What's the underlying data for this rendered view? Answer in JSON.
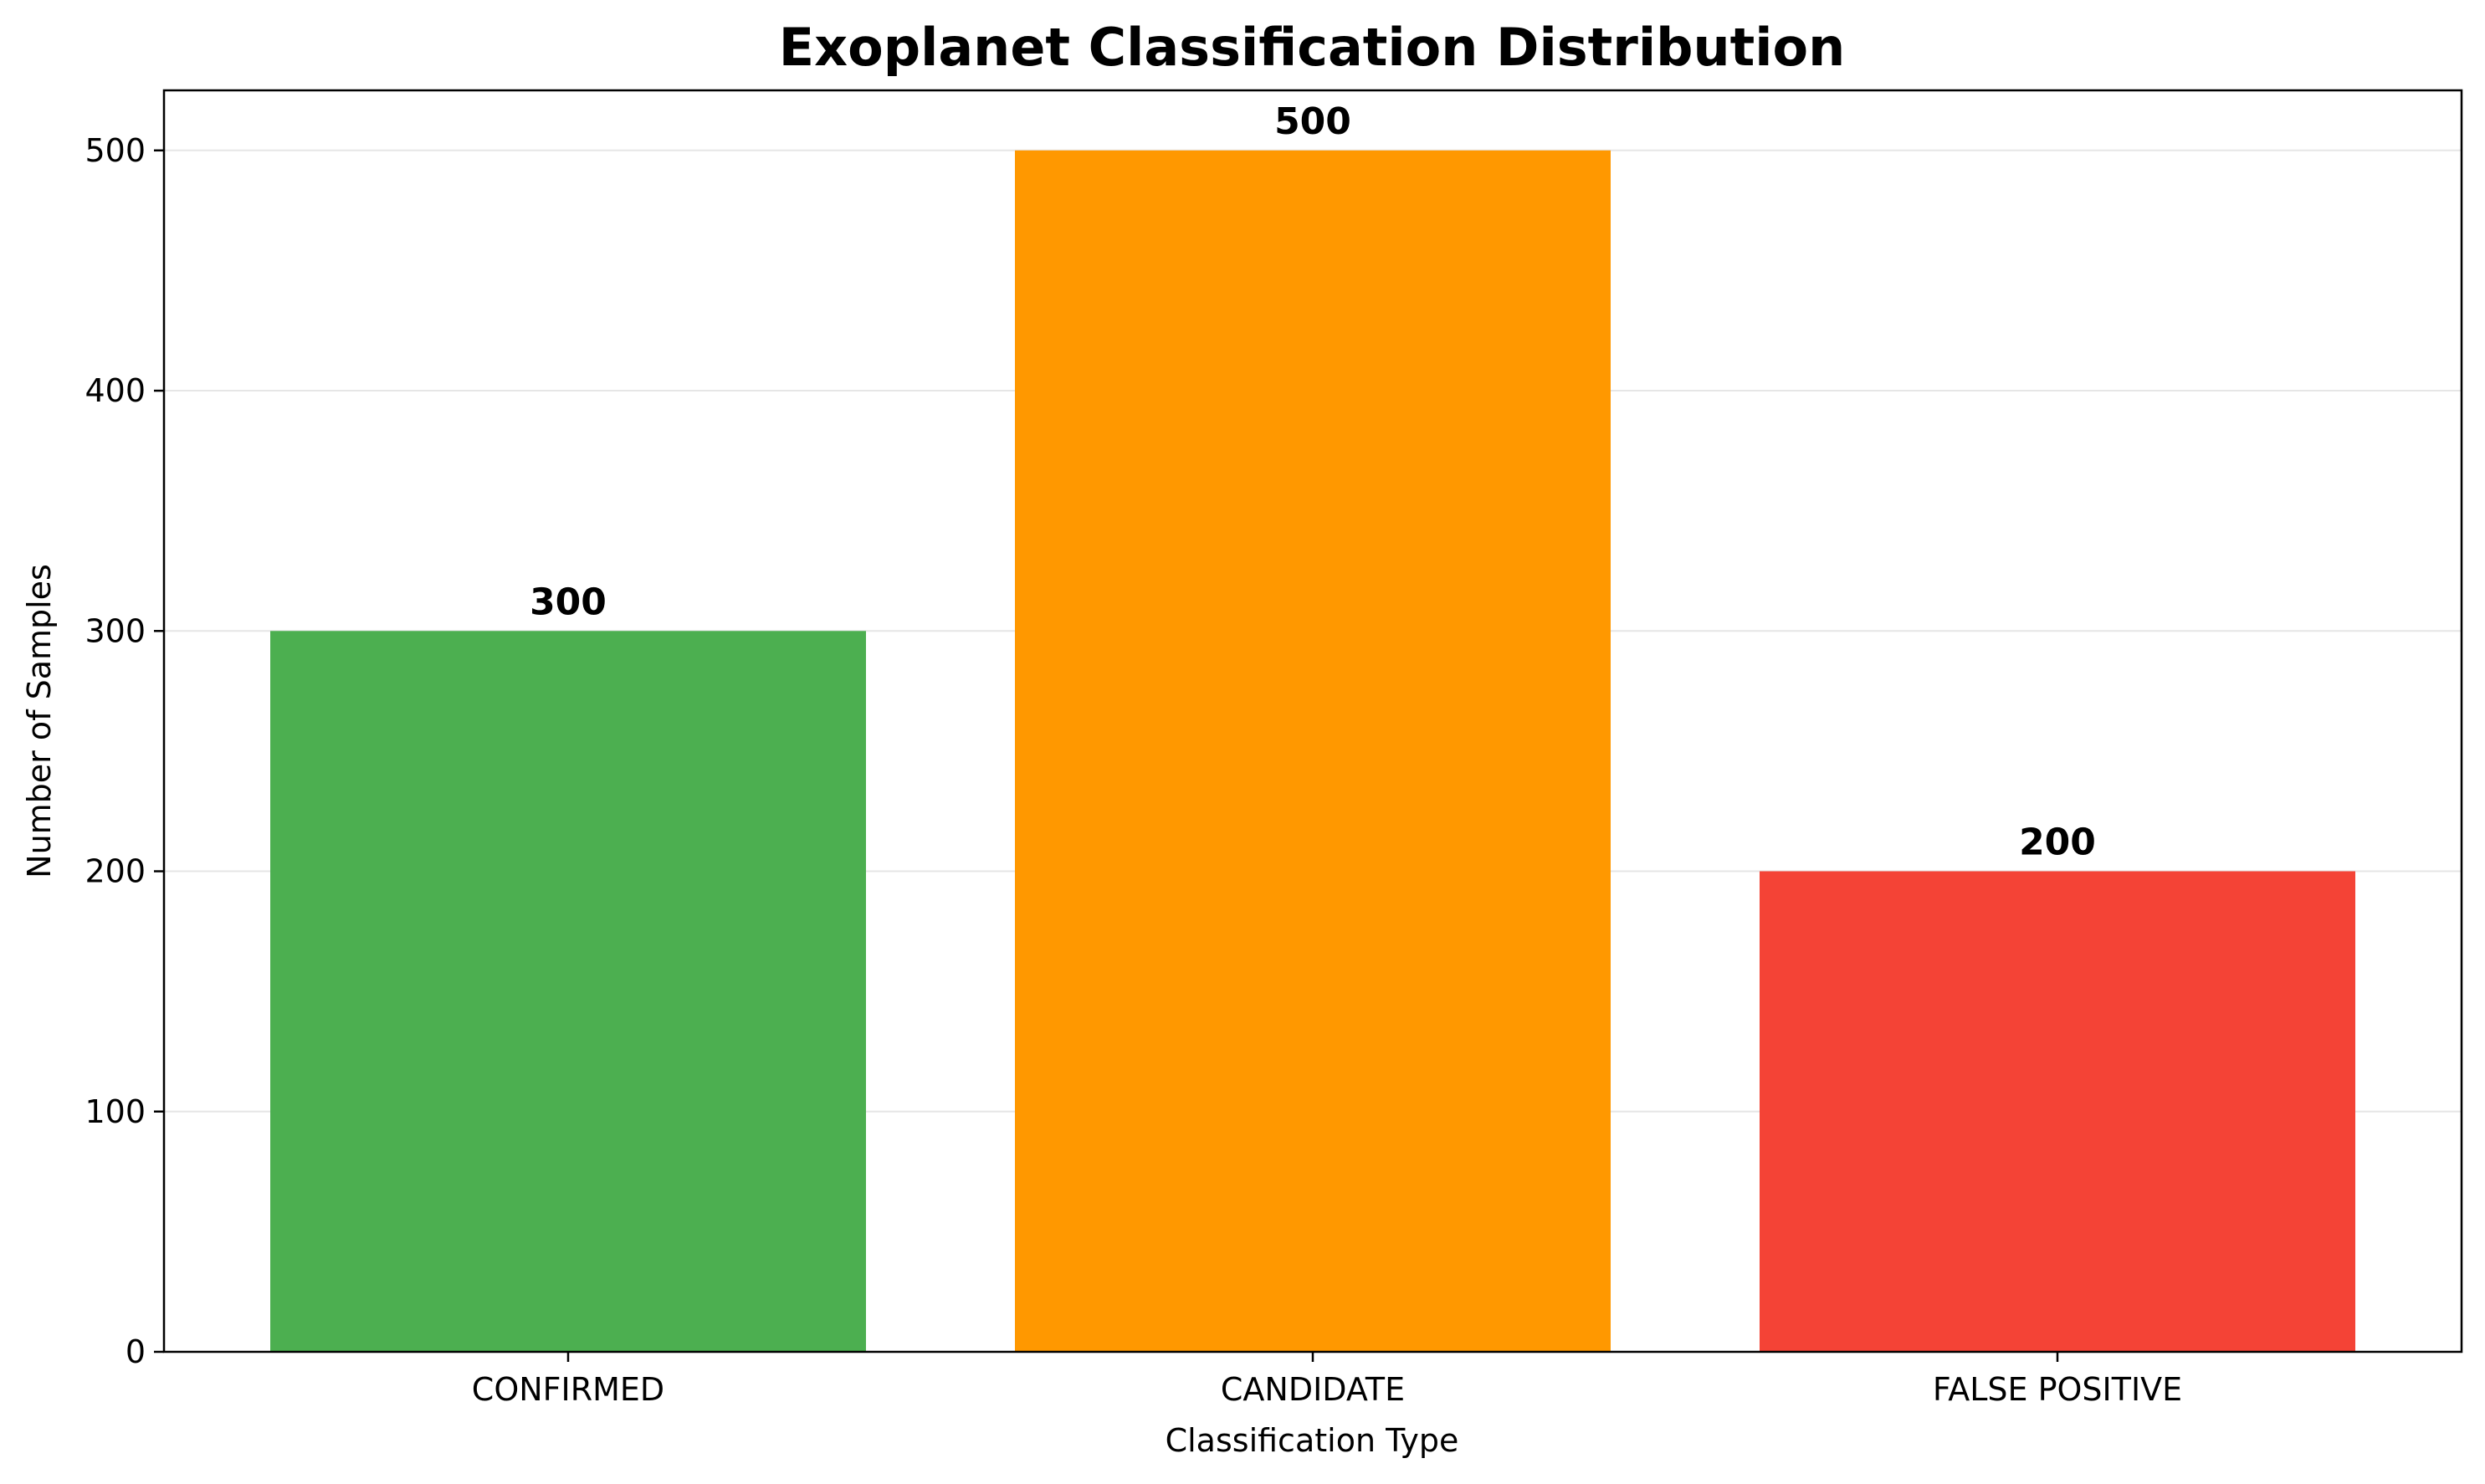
{
  "chart_data": {
    "type": "bar",
    "title": "Exoplanet Classification Distribution",
    "xlabel": "Classification Type",
    "ylabel": "Number of Samples",
    "categories": [
      "CONFIRMED",
      "CANDIDATE",
      "FALSE POSITIVE"
    ],
    "values": [
      300,
      500,
      200
    ],
    "data_labels": [
      "300",
      "500",
      "200"
    ],
    "colors": [
      "#4caf50",
      "#ff9800",
      "#f44336"
    ],
    "ylim": [
      0,
      525
    ],
    "yticks": [
      0,
      100,
      200,
      300,
      400,
      500
    ],
    "ytick_labels": [
      "0",
      "100",
      "200",
      "300",
      "400",
      "500"
    ],
    "grid": "y-axis",
    "legend": "none"
  }
}
